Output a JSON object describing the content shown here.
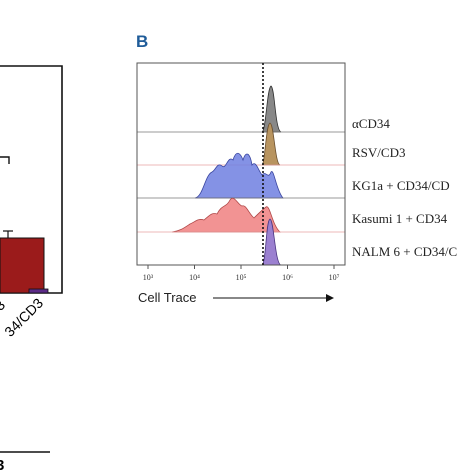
{
  "panel_a": {
    "tick_labels": [
      "3",
      "34/CD3"
    ],
    "footer": "3"
  },
  "panel_b": {
    "label": "B",
    "row_labels": [
      "αCD34",
      "RSV/CD3",
      "KG1a + CD34/CD",
      "Kasumi 1 + CD34",
      "NALM 6 + CD34/C"
    ],
    "x_ticks": [
      "10³",
      "10⁴",
      "10⁵",
      "10⁶",
      "10⁷"
    ],
    "x_axis_label": "Cell Trace"
  }
}
